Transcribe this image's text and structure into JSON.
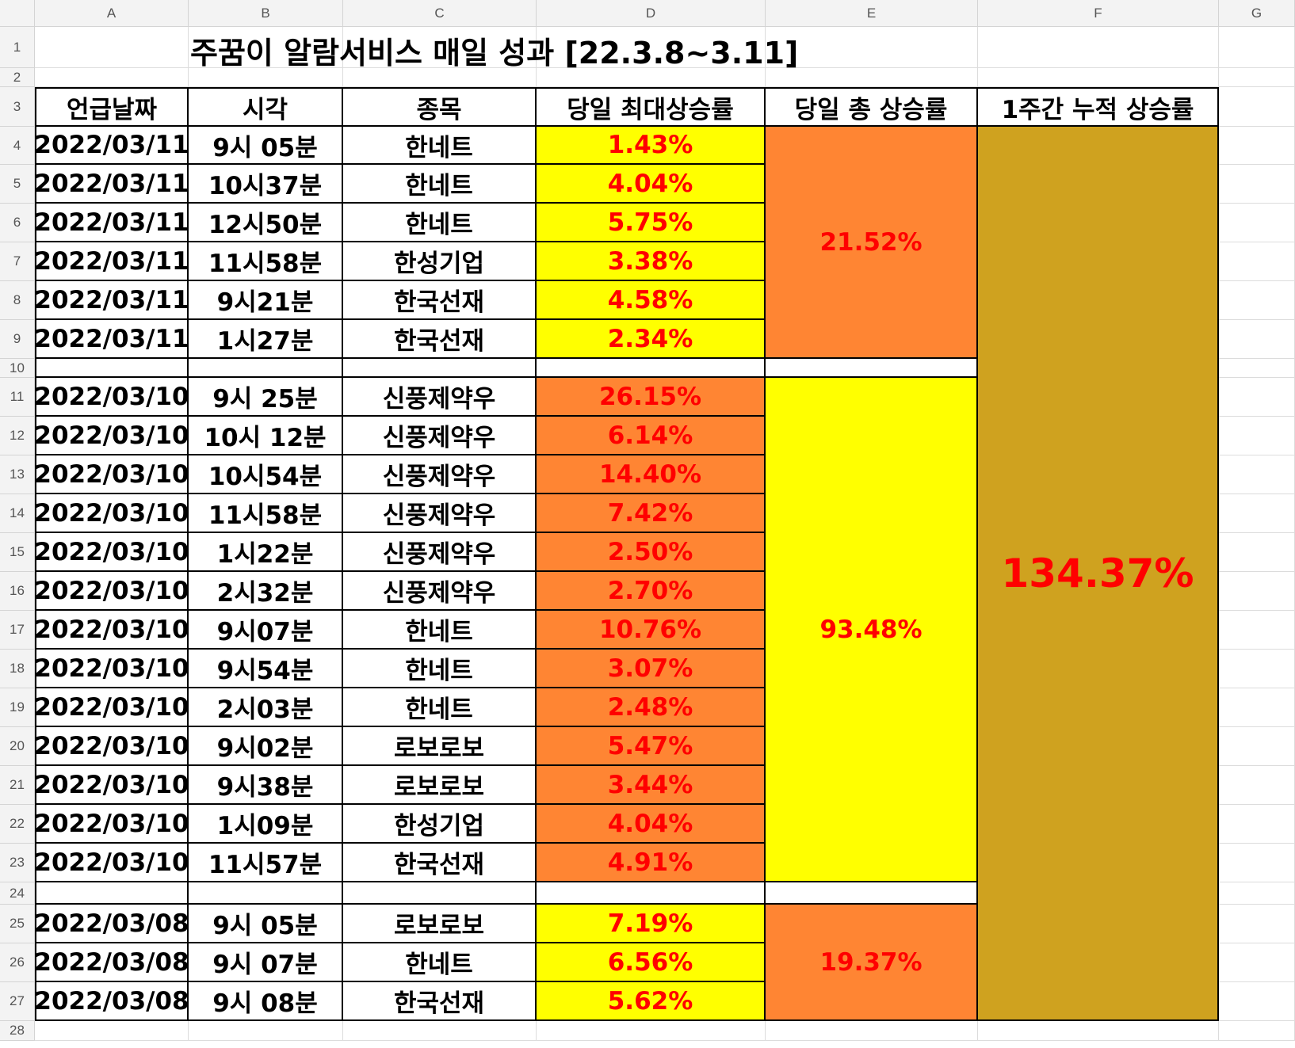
{
  "sheet": {
    "columns": [
      "A",
      "B",
      "C",
      "D",
      "E",
      "F",
      "G"
    ],
    "row_numbers": [
      "1",
      "2",
      "3",
      "4",
      "5",
      "6",
      "7",
      "8",
      "9",
      "10",
      "11",
      "12",
      "13",
      "14",
      "15",
      "16",
      "17",
      "18",
      "19",
      "20",
      "21",
      "22",
      "23",
      "24",
      "25",
      "26",
      "27",
      "28"
    ],
    "title": "주꿈이 알람서비스 매일 성과 [22.3.8~3.11]",
    "headers": [
      "언급날짜",
      "시각",
      "종목",
      "당일 최대상승률",
      "당일 총 상승률",
      "1주간 누적 상승률"
    ],
    "rows": [
      {
        "date": "2022/03/11",
        "time": "9시 05분",
        "stock": "한네트",
        "max": "1.43%"
      },
      {
        "date": "2022/03/11",
        "time": "10시37분",
        "stock": "한네트",
        "max": "4.04%"
      },
      {
        "date": "2022/03/11",
        "time": "12시50분",
        "stock": "한네트",
        "max": "5.75%"
      },
      {
        "date": "2022/03/11",
        "time": "11시58분",
        "stock": "한성기업",
        "max": "3.38%"
      },
      {
        "date": "2022/03/11",
        "time": "9시21분",
        "stock": "한국선재",
        "max": "4.58%"
      },
      {
        "date": "2022/03/11",
        "time": "1시27분",
        "stock": "한국선재",
        "max": "2.34%"
      },
      {
        "date": "2022/03/10",
        "time": "9시 25분",
        "stock": "신풍제약우",
        "max": "26.15%"
      },
      {
        "date": "2022/03/10",
        "time": "10시 12분",
        "stock": "신풍제약우",
        "max": "6.14%"
      },
      {
        "date": "2022/03/10",
        "time": "10시54분",
        "stock": "신풍제약우",
        "max": "14.40%"
      },
      {
        "date": "2022/03/10",
        "time": "11시58분",
        "stock": "신풍제약우",
        "max": "7.42%"
      },
      {
        "date": "2022/03/10",
        "time": "1시22분",
        "stock": "신풍제약우",
        "max": "2.50%"
      },
      {
        "date": "2022/03/10",
        "time": "2시32분",
        "stock": "신풍제약우",
        "max": "2.70%"
      },
      {
        "date": "2022/03/10",
        "time": "9시07분",
        "stock": "한네트",
        "max": "10.76%"
      },
      {
        "date": "2022/03/10",
        "time": "9시54분",
        "stock": "한네트",
        "max": "3.07%"
      },
      {
        "date": "2022/03/10",
        "time": "2시03분",
        "stock": "한네트",
        "max": "2.48%"
      },
      {
        "date": "2022/03/10",
        "time": "9시02분",
        "stock": "로보로보",
        "max": "5.47%"
      },
      {
        "date": "2022/03/10",
        "time": "9시38분",
        "stock": "로보로보",
        "max": "3.44%"
      },
      {
        "date": "2022/03/10",
        "time": "1시09분",
        "stock": "한성기업",
        "max": "4.04%"
      },
      {
        "date": "2022/03/10",
        "time": "11시57분",
        "stock": "한국선재",
        "max": "4.91%"
      },
      {
        "date": "2022/03/08",
        "time": "9시 05분",
        "stock": "로보로보",
        "max": "7.19%"
      },
      {
        "date": "2022/03/08",
        "time": "9시 07분",
        "stock": "한네트",
        "max": "6.56%"
      },
      {
        "date": "2022/03/08",
        "time": "9시 08분",
        "stock": "한국선재",
        "max": "5.62%"
      }
    ],
    "daily_totals": [
      "21.52%",
      "93.48%",
      "19.37%"
    ],
    "weekly_total": "134.37%",
    "colors": {
      "yellow": "#ffff00",
      "orange": "#ff8533",
      "gold": "#cfa21f",
      "value_text": "#ff0000"
    }
  }
}
